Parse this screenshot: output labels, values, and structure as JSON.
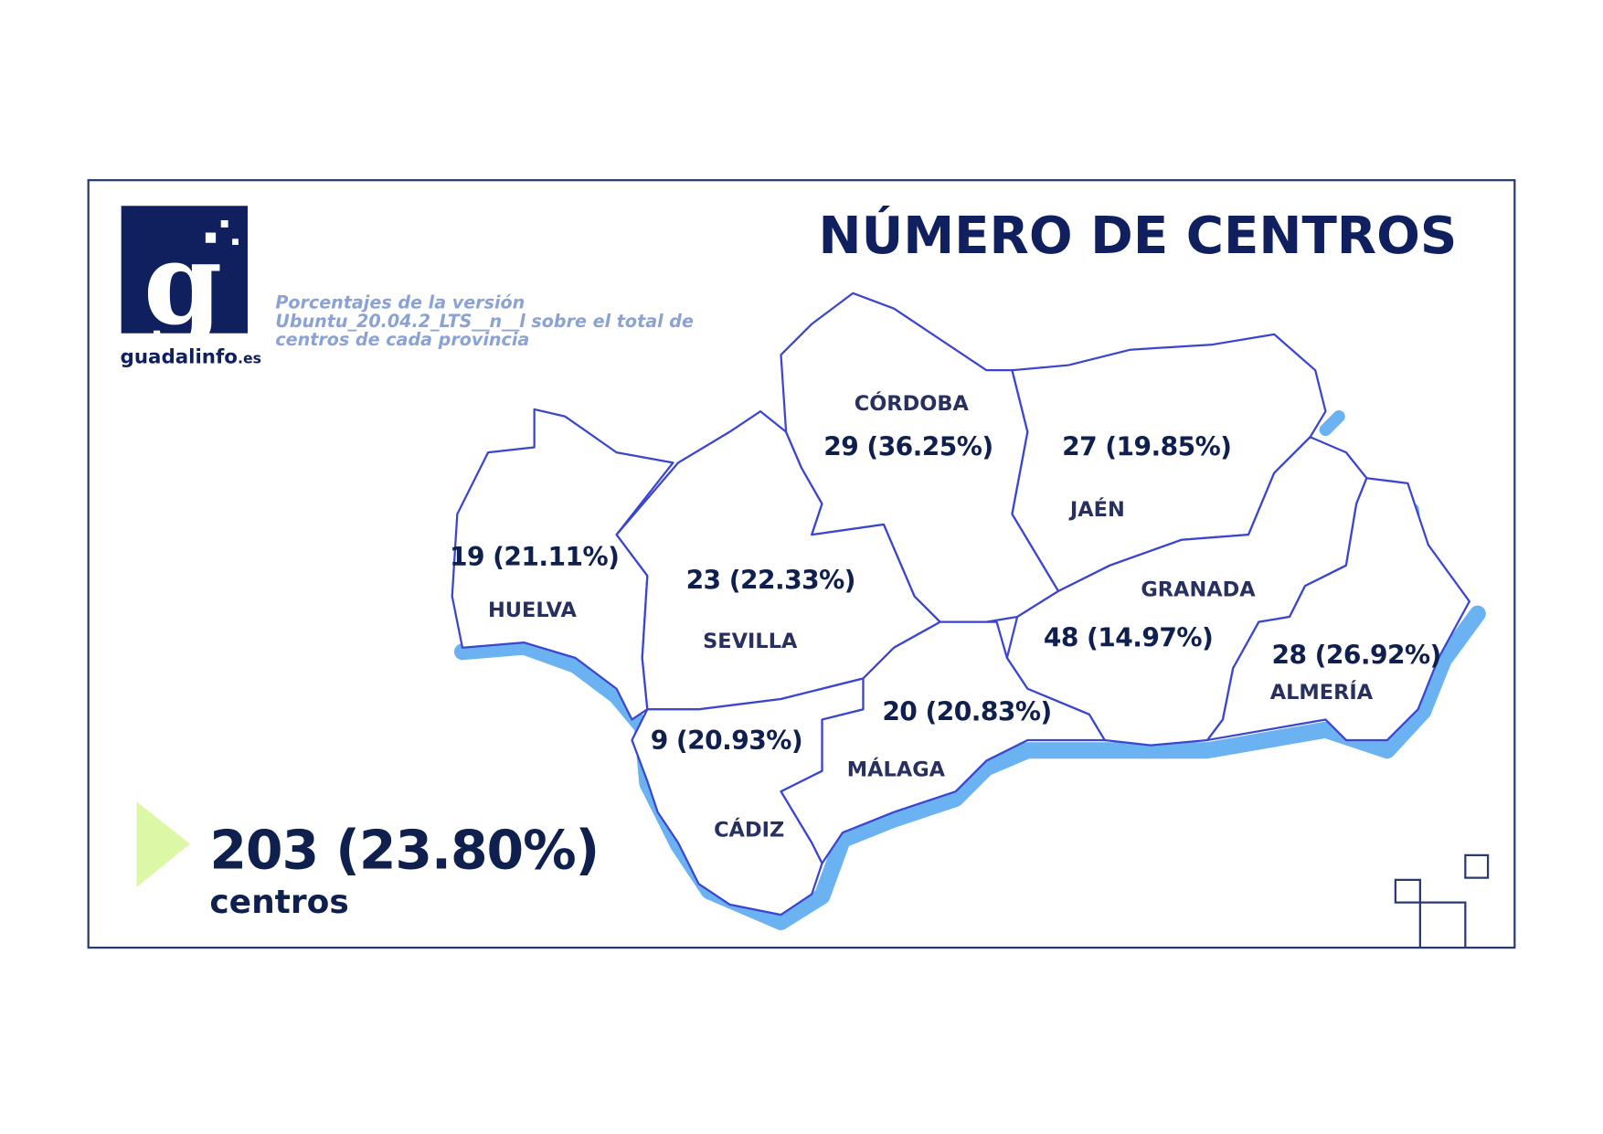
{
  "logo": {
    "brand": "guadalinfo",
    "domain": ".es"
  },
  "title": "NÚMERO DE CENTROS",
  "subtitle": [
    "Porcentajes de la versión",
    "Ubuntu_20.04.2_LTS__n__l sobre el total de",
    "centros de cada provincia"
  ],
  "provinces": [
    {
      "name": "CÓRDOBA",
      "label": "29 (36.25%)"
    },
    {
      "name": "JAÉN",
      "label": "27 (19.85%)"
    },
    {
      "name": "HUELVA",
      "label": "19 (21.11%)"
    },
    {
      "name": "SEVILLA",
      "label": "23 (22.33%)"
    },
    {
      "name": "GRANADA",
      "label": "48 (14.97%)"
    },
    {
      "name": "ALMERÍA",
      "label": "28 (26.92%)"
    },
    {
      "name": "MÁLAGA",
      "label": "20 (20.83%)"
    },
    {
      "name": "CÁDIZ",
      "label": "9 (20.93%)"
    }
  ],
  "total": {
    "label": "203 (23.80%)",
    "unit": "centros"
  }
}
